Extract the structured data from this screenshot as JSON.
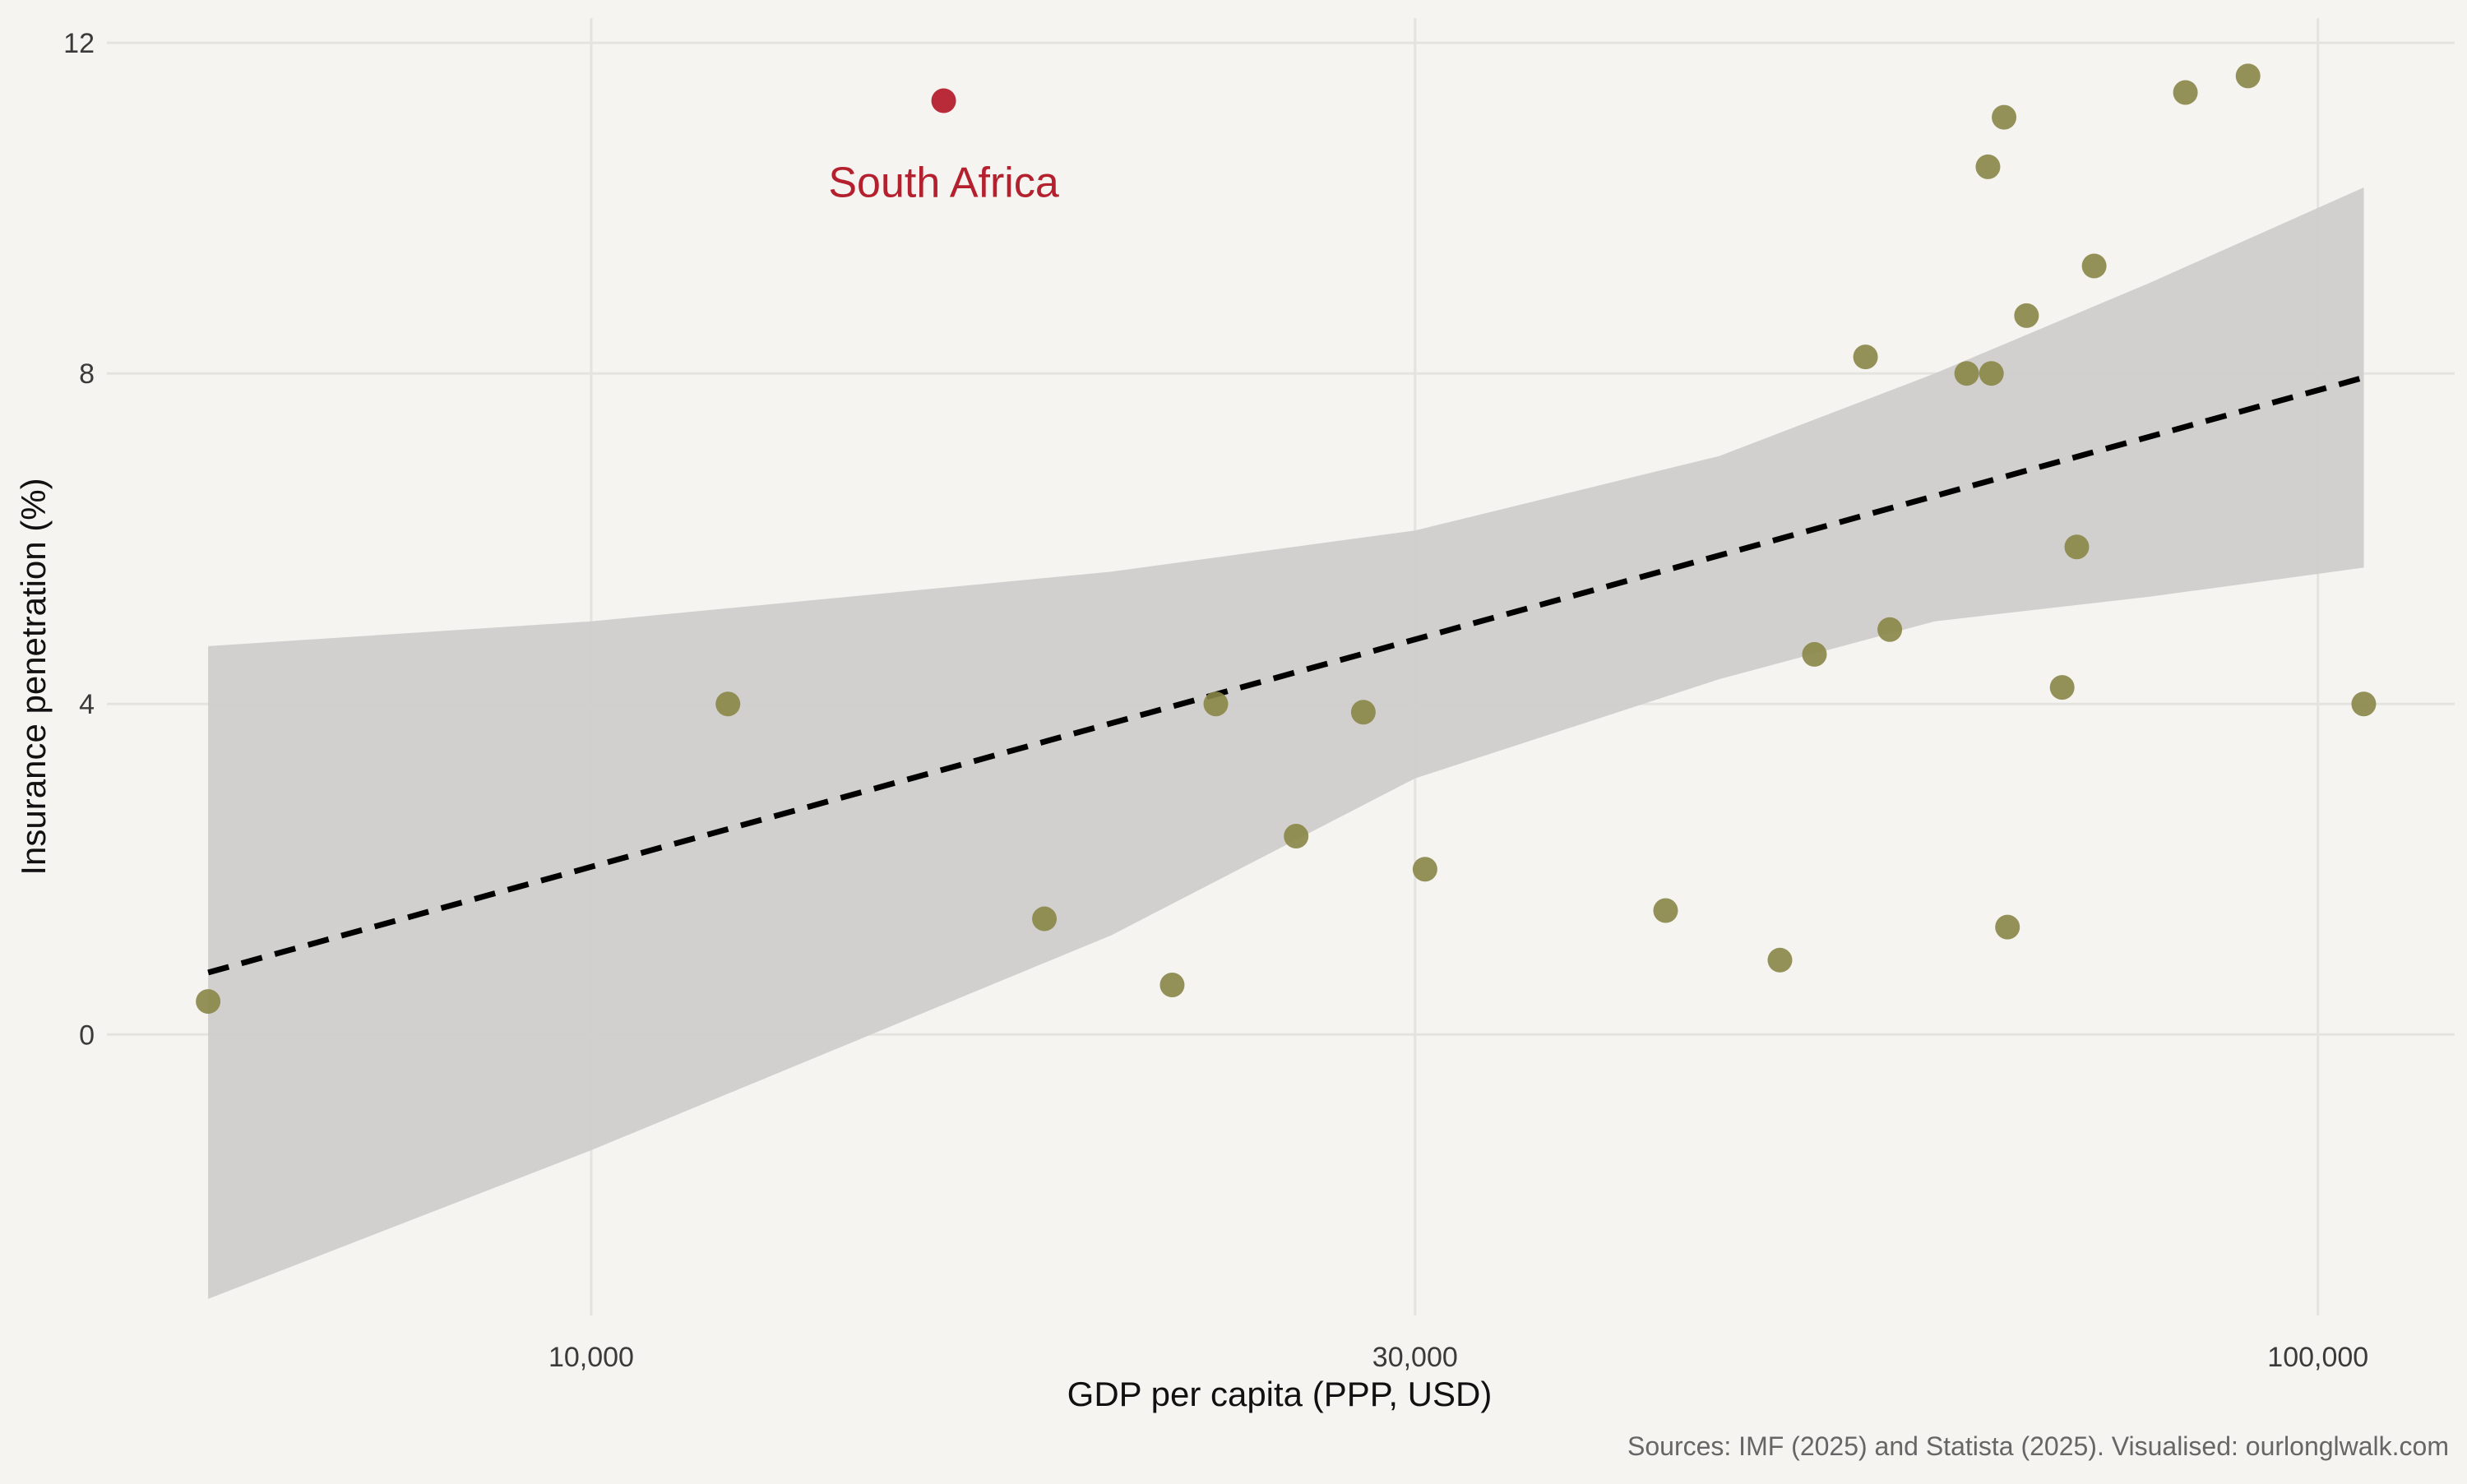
{
  "chart_data": {
    "type": "scatter",
    "xlabel": "GDP per capita (PPP, USD)",
    "ylabel": "Insurance penetration (%)",
    "caption": "Sources: IMF (2025) and Statista (2025). Visualised: ourlonglwalk.com",
    "x_scale": "log",
    "xlim": [
      5300,
      120000
    ],
    "ylim": [
      -3.4,
      12.3
    ],
    "x_ticks": [
      10000,
      30000,
      100000
    ],
    "x_tick_labels": [
      "10,000",
      "30,000",
      "100,000"
    ],
    "y_ticks": [
      0,
      4,
      8,
      12
    ],
    "y_tick_labels": [
      "0",
      "4",
      "8",
      "12"
    ],
    "grid": true,
    "colors": {
      "background": "#f5f4f0",
      "point": "#8a8647",
      "highlight": "#b5202e",
      "ribbon": "#cfcecb",
      "trend": "#000000",
      "grid": "#e4e3df"
    },
    "highlight": {
      "label": "South Africa",
      "x": 16000,
      "y": 11.3
    },
    "points": [
      {
        "x": 6000,
        "y": 0.4
      },
      {
        "x": 12000,
        "y": 4.0
      },
      {
        "x": 16000,
        "y": 11.3,
        "highlight": true
      },
      {
        "x": 18300,
        "y": 1.4
      },
      {
        "x": 21700,
        "y": 0.6
      },
      {
        "x": 23000,
        "y": 4.0
      },
      {
        "x": 25600,
        "y": 2.4
      },
      {
        "x": 28000,
        "y": 3.9
      },
      {
        "x": 30400,
        "y": 2.0
      },
      {
        "x": 41900,
        "y": 1.5
      },
      {
        "x": 48800,
        "y": 0.9
      },
      {
        "x": 51100,
        "y": 4.6
      },
      {
        "x": 54700,
        "y": 8.2
      },
      {
        "x": 56500,
        "y": 4.9
      },
      {
        "x": 62600,
        "y": 8.0
      },
      {
        "x": 64400,
        "y": 10.5
      },
      {
        "x": 64700,
        "y": 8.0
      },
      {
        "x": 65800,
        "y": 11.1
      },
      {
        "x": 66100,
        "y": 1.3
      },
      {
        "x": 67800,
        "y": 8.7
      },
      {
        "x": 71100,
        "y": 4.2
      },
      {
        "x": 72500,
        "y": 5.9
      },
      {
        "x": 74200,
        "y": 9.3
      },
      {
        "x": 83800,
        "y": 11.4
      },
      {
        "x": 91100,
        "y": 11.6
      },
      {
        "x": 106300,
        "y": 4.0
      }
    ],
    "trend": {
      "style": "dashed",
      "x": [
        6000,
        106300
      ],
      "y": [
        0.75,
        7.95
      ]
    },
    "confidence_band": {
      "x": [
        6000,
        10000,
        20000,
        30000,
        45000,
        60000,
        80000,
        106300
      ],
      "upper": [
        4.7,
        5.0,
        5.6,
        6.1,
        7.0,
        8.0,
        9.1,
        10.25
      ],
      "lower": [
        -3.2,
        -1.4,
        1.2,
        3.1,
        4.3,
        5.0,
        5.3,
        5.65
      ]
    }
  }
}
